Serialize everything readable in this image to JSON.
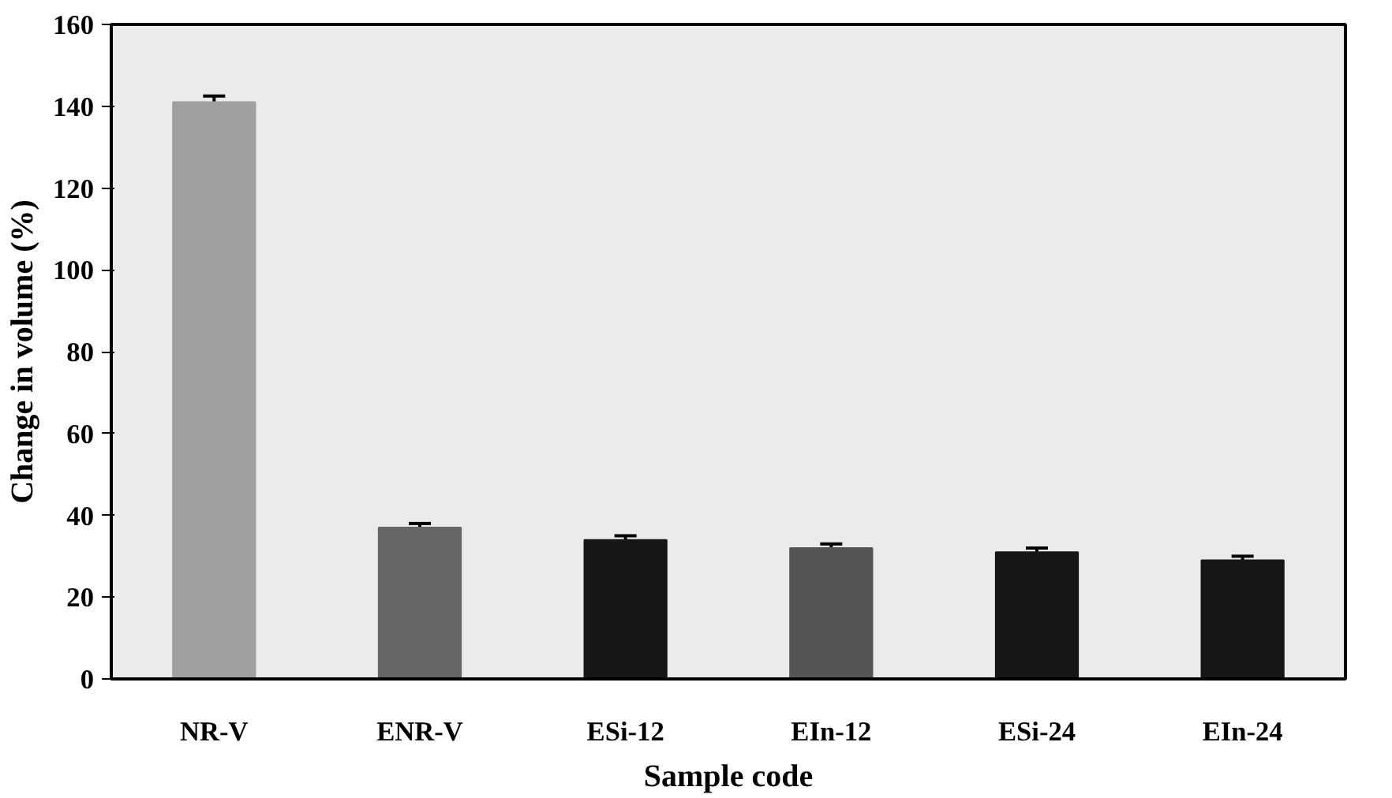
{
  "chart_data": {
    "type": "bar",
    "xlabel": "Sample code",
    "ylabel": "Change in volume (%)",
    "categories": [
      "NR-V",
      "ENR-V",
      "ESi-12",
      "EIn-12",
      "ESi-24",
      "EIn-24"
    ],
    "values": [
      141,
      37,
      34,
      32,
      31,
      29
    ],
    "colors": [
      "#a0a0a0",
      "#666666",
      "#161616",
      "#555555",
      "#161616",
      "#161616"
    ],
    "errors": [
      1.5,
      1,
      1,
      1,
      1,
      1
    ],
    "ylim": [
      0,
      160
    ],
    "yticks": [
      0,
      20,
      40,
      60,
      80,
      100,
      120,
      140,
      160
    ],
    "grid": false
  }
}
